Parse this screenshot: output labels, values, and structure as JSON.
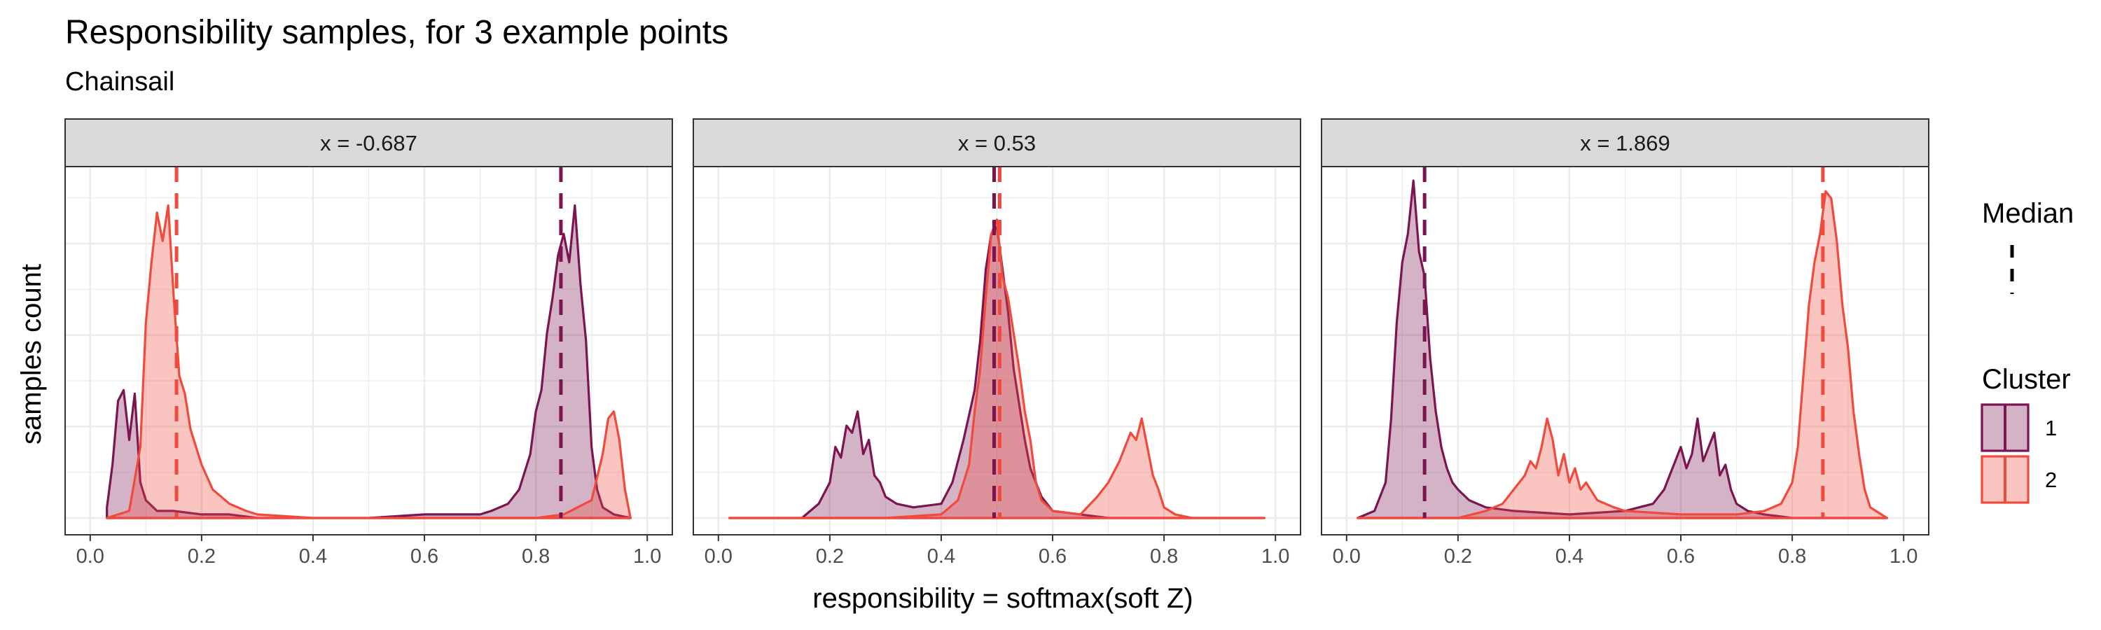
{
  "chart_data": {
    "type": "area",
    "title": "Responsibility samples, for 3 example points",
    "subtitle": "Chainsail",
    "xlabel": "responsibility = softmax(soft Z)",
    "ylabel": "samples count",
    "xlim": [
      0,
      1
    ],
    "x_ticks": [
      "0.0",
      "0.2",
      "0.4",
      "0.6",
      "0.8",
      "1.0"
    ],
    "grid": true,
    "legend": {
      "placement": "right",
      "median_title": "Median",
      "cluster_title": "Cluster",
      "entries": [
        {
          "label": "1",
          "color": "#7b1450"
        },
        {
          "label": "2",
          "color": "#f04a3d"
        }
      ]
    },
    "panels": [
      {
        "strip": "x = -0.687",
        "series": [
          {
            "cluster": "1",
            "median": 0.845,
            "x": [
              0.03,
              0.04,
              0.05,
              0.06,
              0.07,
              0.08,
              0.09,
              0.1,
              0.12,
              0.15,
              0.2,
              0.25,
              0.3,
              0.4,
              0.5,
              0.6,
              0.7,
              0.72,
              0.75,
              0.77,
              0.79,
              0.8,
              0.81,
              0.82,
              0.83,
              0.84,
              0.85,
              0.86,
              0.87,
              0.88,
              0.89,
              0.9,
              0.91,
              0.92,
              0.94,
              0.97
            ],
            "y": [
              0.03,
              0.15,
              0.33,
              0.36,
              0.22,
              0.35,
              0.1,
              0.05,
              0.02,
              0.02,
              0.01,
              0.01,
              0.0,
              0.0,
              0.0,
              0.01,
              0.01,
              0.02,
              0.04,
              0.08,
              0.18,
              0.3,
              0.36,
              0.52,
              0.62,
              0.74,
              0.8,
              0.72,
              0.88,
              0.66,
              0.5,
              0.2,
              0.08,
              0.03,
              0.01,
              0.0
            ]
          },
          {
            "cluster": "2",
            "median": 0.155,
            "x": [
              0.03,
              0.07,
              0.09,
              0.1,
              0.11,
              0.12,
              0.13,
              0.14,
              0.15,
              0.16,
              0.17,
              0.18,
              0.19,
              0.2,
              0.22,
              0.25,
              0.28,
              0.3,
              0.4,
              0.5,
              0.6,
              0.7,
              0.8,
              0.85,
              0.9,
              0.92,
              0.93,
              0.94,
              0.95,
              0.96,
              0.97
            ],
            "y": [
              0.0,
              0.02,
              0.2,
              0.55,
              0.72,
              0.86,
              0.78,
              0.88,
              0.62,
              0.4,
              0.35,
              0.25,
              0.2,
              0.15,
              0.08,
              0.04,
              0.02,
              0.01,
              0.0,
              0.0,
              0.0,
              0.0,
              0.0,
              0.01,
              0.05,
              0.18,
              0.28,
              0.3,
              0.22,
              0.08,
              0.0
            ]
          }
        ]
      },
      {
        "strip": "x = 0.53",
        "series": [
          {
            "cluster": "1",
            "median": 0.495,
            "x": [
              0.02,
              0.15,
              0.18,
              0.2,
              0.21,
              0.22,
              0.23,
              0.24,
              0.25,
              0.26,
              0.27,
              0.28,
              0.29,
              0.3,
              0.32,
              0.35,
              0.4,
              0.42,
              0.44,
              0.46,
              0.47,
              0.48,
              0.49,
              0.5,
              0.51,
              0.52,
              0.53,
              0.54,
              0.55,
              0.56,
              0.58,
              0.6,
              0.7,
              0.98
            ],
            "y": [
              0.0,
              0.0,
              0.04,
              0.1,
              0.2,
              0.17,
              0.26,
              0.24,
              0.3,
              0.18,
              0.22,
              0.12,
              0.1,
              0.06,
              0.04,
              0.03,
              0.04,
              0.1,
              0.22,
              0.36,
              0.5,
              0.7,
              0.8,
              0.82,
              0.7,
              0.58,
              0.42,
              0.32,
              0.22,
              0.14,
              0.06,
              0.02,
              0.0,
              0.0
            ]
          },
          {
            "cluster": "2",
            "median": 0.505,
            "x": [
              0.02,
              0.3,
              0.4,
              0.43,
              0.45,
              0.46,
              0.47,
              0.48,
              0.49,
              0.5,
              0.51,
              0.52,
              0.53,
              0.54,
              0.55,
              0.56,
              0.57,
              0.58,
              0.6,
              0.65,
              0.68,
              0.7,
              0.72,
              0.73,
              0.74,
              0.75,
              0.76,
              0.77,
              0.78,
              0.79,
              0.8,
              0.82,
              0.85,
              0.98
            ],
            "y": [
              0.0,
              0.0,
              0.01,
              0.05,
              0.15,
              0.3,
              0.42,
              0.62,
              0.8,
              0.84,
              0.68,
              0.62,
              0.52,
              0.42,
              0.3,
              0.22,
              0.1,
              0.05,
              0.02,
              0.01,
              0.06,
              0.1,
              0.16,
              0.2,
              0.24,
              0.22,
              0.28,
              0.2,
              0.12,
              0.08,
              0.03,
              0.01,
              0.0,
              0.0
            ]
          }
        ]
      },
      {
        "strip": "x = 1.869",
        "series": [
          {
            "cluster": "1",
            "median": 0.14,
            "x": [
              0.02,
              0.05,
              0.07,
              0.08,
              0.09,
              0.1,
              0.11,
              0.12,
              0.13,
              0.14,
              0.15,
              0.16,
              0.17,
              0.18,
              0.19,
              0.2,
              0.22,
              0.25,
              0.3,
              0.4,
              0.5,
              0.55,
              0.57,
              0.58,
              0.59,
              0.6,
              0.61,
              0.62,
              0.63,
              0.64,
              0.65,
              0.66,
              0.67,
              0.68,
              0.69,
              0.7,
              0.72,
              0.75,
              0.8,
              0.85,
              0.9,
              0.97
            ],
            "y": [
              0.0,
              0.02,
              0.1,
              0.28,
              0.55,
              0.72,
              0.8,
              0.95,
              0.75,
              0.68,
              0.45,
              0.3,
              0.2,
              0.14,
              0.1,
              0.08,
              0.05,
              0.03,
              0.02,
              0.01,
              0.02,
              0.04,
              0.08,
              0.12,
              0.16,
              0.2,
              0.14,
              0.18,
              0.28,
              0.16,
              0.2,
              0.24,
              0.12,
              0.15,
              0.08,
              0.04,
              0.02,
              0.01,
              0.0,
              0.0,
              0.0,
              0.0
            ]
          },
          {
            "cluster": "2",
            "median": 0.855,
            "x": [
              0.02,
              0.2,
              0.25,
              0.28,
              0.3,
              0.32,
              0.33,
              0.34,
              0.35,
              0.36,
              0.37,
              0.38,
              0.39,
              0.4,
              0.41,
              0.42,
              0.43,
              0.45,
              0.48,
              0.5,
              0.6,
              0.7,
              0.75,
              0.78,
              0.8,
              0.81,
              0.82,
              0.83,
              0.84,
              0.85,
              0.86,
              0.87,
              0.88,
              0.89,
              0.9,
              0.91,
              0.92,
              0.93,
              0.94,
              0.96,
              0.97
            ],
            "y": [
              0.0,
              0.0,
              0.02,
              0.04,
              0.08,
              0.12,
              0.16,
              0.14,
              0.2,
              0.28,
              0.22,
              0.12,
              0.18,
              0.1,
              0.14,
              0.08,
              0.1,
              0.05,
              0.03,
              0.02,
              0.01,
              0.01,
              0.02,
              0.04,
              0.1,
              0.2,
              0.4,
              0.6,
              0.72,
              0.8,
              0.92,
              0.9,
              0.78,
              0.6,
              0.48,
              0.3,
              0.18,
              0.08,
              0.03,
              0.01,
              0.0
            ]
          }
        ]
      }
    ]
  }
}
